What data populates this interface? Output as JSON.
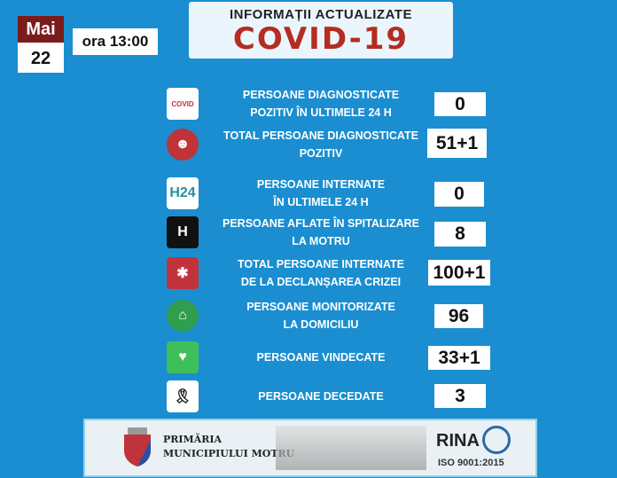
{
  "date": {
    "month": "Mai",
    "day": "22",
    "time": "ora 13:00"
  },
  "banner": {
    "line1": "INFORMAȚII ACTUALIZATE",
    "line2": "COVID-19"
  },
  "rows": [
    {
      "icon": "covid-test-icon",
      "line1": "PERSOANE DIAGNOSTICATE",
      "line2": "POZITIV  ÎN ULTIMELE 24 H",
      "value": "0"
    },
    {
      "icon": "patient-icon",
      "line1": "TOTAL   PERSOANE DIAGNOSTICATE",
      "line2": "POZITIV",
      "value": "51+1"
    },
    {
      "icon": "h24-icon",
      "line1": "PERSOANE INTERNATE",
      "line2": "ÎN ULTIMELE 24 H",
      "value": "0"
    },
    {
      "icon": "hospital-icon",
      "line1": "PERSOANE  AFLATE  ÎN SPITALIZARE",
      "line2": "LA MOTRU",
      "value": "8"
    },
    {
      "icon": "medical-star-icon",
      "line1": "TOTAL PERSOANE INTERNATE",
      "line2": "DE LA DECLANȘAREA CRIZEI",
      "value": "100+1"
    },
    {
      "icon": "home-pin-icon",
      "line1": "PERSOANE MONITORIZATE",
      "line2": "LA DOMICILIU",
      "value": "96"
    },
    {
      "icon": "heart-pulse-icon",
      "line1": "PERSOANE VINDECATE",
      "line2": "",
      "value": "33+1"
    },
    {
      "icon": "mourning-ribbon-icon",
      "line1": "PERSOANE  DECEDATE",
      "line2": "",
      "value": "3"
    }
  ],
  "footer": {
    "line1": "PRIMĂRIA",
    "line2": "MUNICIPIULUI MOTRU",
    "cert": "RINA",
    "iso": "ISO 9001:2015"
  },
  "colors": {
    "background": "#1a8ed0",
    "month": "#7a1c1c",
    "covid": "#b52c22"
  }
}
